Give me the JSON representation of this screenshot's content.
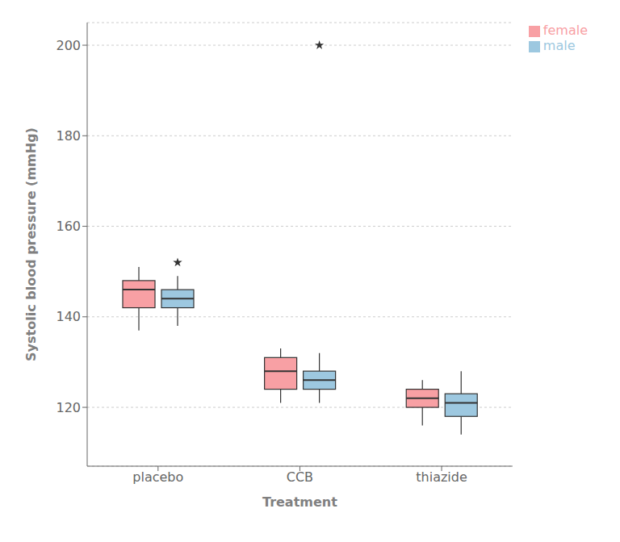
{
  "chart_data": {
    "type": "box",
    "title": "",
    "xlabel": "Treatment",
    "ylabel": "Systolic blood pressure (mmHg)",
    "categories": [
      "placebo",
      "CCB",
      "thiazide"
    ],
    "series": [
      {
        "name": "female",
        "color": "#F8A0A4",
        "values": [
          {
            "q1": 142,
            "median": 146,
            "q3": 148,
            "whisker_low": 137,
            "whisker_high": 151,
            "outliers": []
          },
          {
            "q1": 124,
            "median": 128,
            "q3": 131,
            "whisker_low": 121,
            "whisker_high": 133,
            "outliers": []
          },
          {
            "q1": 120,
            "median": 122,
            "q3": 124,
            "whisker_low": 116,
            "whisker_high": 126,
            "outliers": []
          }
        ]
      },
      {
        "name": "male",
        "color": "#9DC8E0",
        "values": [
          {
            "q1": 142,
            "median": 144,
            "q3": 146,
            "whisker_low": 138,
            "whisker_high": 149,
            "outliers": [
              152
            ]
          },
          {
            "q1": 124,
            "median": 126,
            "q3": 128,
            "whisker_low": 121,
            "whisker_high": 132,
            "outliers": [
              200
            ]
          },
          {
            "q1": 118,
            "median": 121,
            "q3": 123,
            "whisker_low": 114,
            "whisker_high": 128,
            "outliers": []
          }
        ]
      }
    ],
    "ylim": [
      107,
      205
    ],
    "yticks": [
      120,
      140,
      160,
      180,
      200
    ],
    "grid": true,
    "legend": "right",
    "marker": "star"
  }
}
